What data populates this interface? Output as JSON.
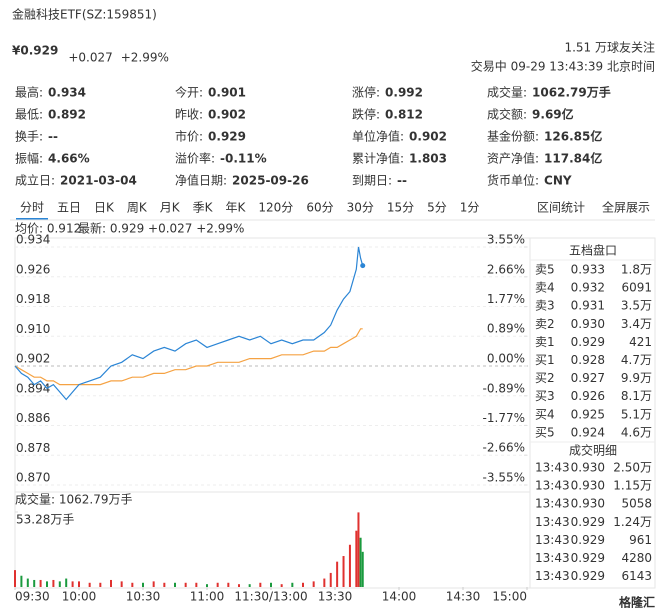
{
  "quote": {
    "title": "金融科技ETF(SZ:159851)",
    "price": "¥0.929",
    "change": "+0.027",
    "change_pct": "+2.99%",
    "followers": "1.51 万球友关注",
    "status": "交易中 09-29 13:43:39 北京时间"
  },
  "stats": {
    "rows": [
      [
        {
          "label": "最高:",
          "value": "0.934",
          "color": "#e0312f"
        },
        {
          "label": "今开:",
          "value": "0.901",
          "color": "#1a9a3e"
        },
        {
          "label": "涨停:",
          "value": "0.992",
          "color": "#e0312f"
        },
        {
          "label": "成交量:",
          "value": "1062.79万手"
        }
      ],
      [
        {
          "label": "最低:",
          "value": "0.892",
          "color": "#1a9a3e"
        },
        {
          "label": "昨收:",
          "value": "0.902"
        },
        {
          "label": "跌停:",
          "value": "0.812",
          "color": "#1a9a3e"
        },
        {
          "label": "成交额:",
          "value": "9.69亿"
        }
      ],
      [
        {
          "label": "换手:",
          "value": "--"
        },
        {
          "label": "市价:",
          "value": "0.929"
        },
        {
          "label": "单位净值:",
          "value": "0.902"
        },
        {
          "label": "基金份额:",
          "value": "126.85亿"
        }
      ],
      [
        {
          "label": "振幅:",
          "value": "4.66%"
        },
        {
          "label": "溢价率:",
          "value": "-0.11%"
        },
        {
          "label": "累计净值:",
          "value": "1.803"
        },
        {
          "label": "资产净值:",
          "value": "117.84亿"
        }
      ],
      [
        {
          "label": "成立日:",
          "value": "2021-03-04"
        },
        {
          "label": "净值日期:",
          "value": "2025-09-26"
        },
        {
          "label": "到期日:",
          "value": "--"
        },
        {
          "label": "货币单位:",
          "value": "CNY"
        }
      ]
    ]
  },
  "tabs": {
    "items": [
      "分时",
      "五日",
      "日K",
      "周K",
      "月K",
      "季K",
      "年K",
      "120分",
      "60分",
      "30分",
      "15分",
      "5分",
      "1分"
    ],
    "active": 0,
    "links": [
      "区间统计",
      "全屏展示"
    ]
  },
  "chart_data": {
    "type": "line",
    "legend": {
      "avg": "均价: 0.912",
      "latest": "最新: 0.929 +0.027 +2.99%"
    },
    "x": [
      0,
      3,
      6,
      9,
      12,
      15,
      18,
      21,
      24,
      27,
      30,
      35,
      40,
      45,
      50,
      55,
      60,
      65,
      70,
      75,
      80,
      85,
      90,
      95,
      100,
      105,
      110,
      115,
      120,
      125,
      130,
      135,
      140,
      145,
      148,
      151,
      154,
      157,
      160,
      161,
      162,
      163
    ],
    "xlim": [
      0,
      240
    ],
    "xticks": [
      {
        "value": 0,
        "label": "09:30"
      },
      {
        "value": 30,
        "label": "10:00"
      },
      {
        "value": 60,
        "label": "10:30"
      },
      {
        "value": 90,
        "label": "11:00"
      },
      {
        "value": 120,
        "label": "11:30/13:00"
      },
      {
        "value": 150,
        "label": "13:30"
      },
      {
        "value": 180,
        "label": "14:00"
      },
      {
        "value": 210,
        "label": "14:30"
      },
      {
        "value": 240,
        "label": "15:00"
      }
    ],
    "series": [
      {
        "color": "#2b85d5",
        "values": [
          0.902,
          0.9,
          0.899,
          0.897,
          0.898,
          0.896,
          0.897,
          0.895,
          0.893,
          0.895,
          0.897,
          0.898,
          0.899,
          0.902,
          0.903,
          0.905,
          0.904,
          0.906,
          0.907,
          0.906,
          0.908,
          0.909,
          0.907,
          0.908,
          0.909,
          0.91,
          0.909,
          0.91,
          0.908,
          0.909,
          0.908,
          0.909,
          0.909,
          0.911,
          0.913,
          0.917,
          0.92,
          0.922,
          0.928,
          0.934,
          0.931,
          0.929
        ]
      },
      {
        "color": "#f5a243",
        "values": [
          0.902,
          0.901,
          0.9,
          0.899,
          0.899,
          0.898,
          0.898,
          0.897,
          0.897,
          0.897,
          0.897,
          0.897,
          0.897,
          0.898,
          0.898,
          0.899,
          0.899,
          0.9,
          0.9,
          0.901,
          0.901,
          0.902,
          0.902,
          0.903,
          0.903,
          0.903,
          0.904,
          0.904,
          0.904,
          0.905,
          0.905,
          0.905,
          0.906,
          0.906,
          0.907,
          0.907,
          0.908,
          0.909,
          0.91,
          0.911,
          0.912,
          0.912
        ]
      }
    ],
    "ylim": [
      0.87,
      0.934
    ],
    "yticks": [
      0.934,
      0.926,
      0.918,
      {
        "value": 0.91,
        "label": "0.910"
      },
      0.902,
      0.894,
      0.886,
      0.878,
      {
        "value": 0.87,
        "label": "0.870"
      }
    ],
    "y2lim": [
      -3.55,
      3.55
    ],
    "y2ticks": [
      {
        "value": 3.55,
        "label": "3.55%"
      },
      {
        "value": 2.66,
        "label": "2.66%"
      },
      {
        "value": 1.77,
        "label": "1.77%"
      },
      {
        "value": 0.89,
        "label": "0.89%"
      },
      {
        "value": 0,
        "label": "0.00%"
      },
      {
        "value": -0.89,
        "label": "-0.89%"
      },
      {
        "value": -1.77,
        "label": "-1.77%"
      },
      {
        "value": -2.66,
        "label": "-2.66%"
      },
      {
        "value": -3.55,
        "label": "-3.55%"
      }
    ],
    "grid": true,
    "volume": {
      "title": "成交量: 1062.79万手",
      "ylim": [
        0,
        53.28
      ],
      "yticks": [
        {
          "value": 53.28,
          "label": "53.28万手"
        }
      ],
      "values": [
        12,
        8,
        6,
        5,
        5,
        4,
        5,
        4,
        6,
        4,
        4,
        3,
        3,
        5,
        4,
        3,
        3,
        4,
        3,
        3,
        3,
        3,
        2,
        3,
        3,
        2,
        2,
        3,
        3,
        2,
        3,
        3,
        4,
        6,
        10,
        18,
        22,
        30,
        40,
        53,
        35,
        25
      ]
    }
  },
  "order_book": {
    "title": "五档盘口",
    "rows": [
      {
        "label": "卖5",
        "price": "0.933",
        "volume": "1.8万"
      },
      {
        "label": "卖4",
        "price": "0.932",
        "volume": "6091"
      },
      {
        "label": "卖3",
        "price": "0.931",
        "volume": "3.5万"
      },
      {
        "label": "卖2",
        "price": "0.930",
        "volume": "3.4万"
      },
      {
        "label": "卖1",
        "price": "0.929",
        "volume": "421"
      },
      {
        "label": "买1",
        "price": "0.928",
        "volume": "4.7万"
      },
      {
        "label": "买2",
        "price": "0.927",
        "volume": "9.9万"
      },
      {
        "label": "买3",
        "price": "0.926",
        "volume": "8.1万"
      },
      {
        "label": "买4",
        "price": "0.925",
        "volume": "5.1万"
      },
      {
        "label": "买5",
        "price": "0.924",
        "volume": "4.6万"
      }
    ]
  },
  "trades": {
    "title": "成交明细",
    "rows": [
      {
        "time": "13:43",
        "price": "0.930",
        "volume": "2.50万",
        "color": "#1a9a3e"
      },
      {
        "time": "13:43",
        "price": "0.930",
        "volume": "1.15万",
        "color": "#e0312f"
      },
      {
        "time": "13:43",
        "price": "0.930",
        "volume": "5058",
        "color": "#333333"
      },
      {
        "time": "13:43",
        "price": "0.929",
        "volume": "1.24万",
        "color": "#1a9a3e"
      },
      {
        "time": "13:43",
        "price": "0.929",
        "volume": "961",
        "color": "#e0312f"
      },
      {
        "time": "13:43",
        "price": "0.929",
        "volume": "4280",
        "color": "#e0312f"
      },
      {
        "time": "13:43",
        "price": "0.929",
        "volume": "6143",
        "color": "#e0312f"
      }
    ]
  },
  "watermark": "格隆汇"
}
